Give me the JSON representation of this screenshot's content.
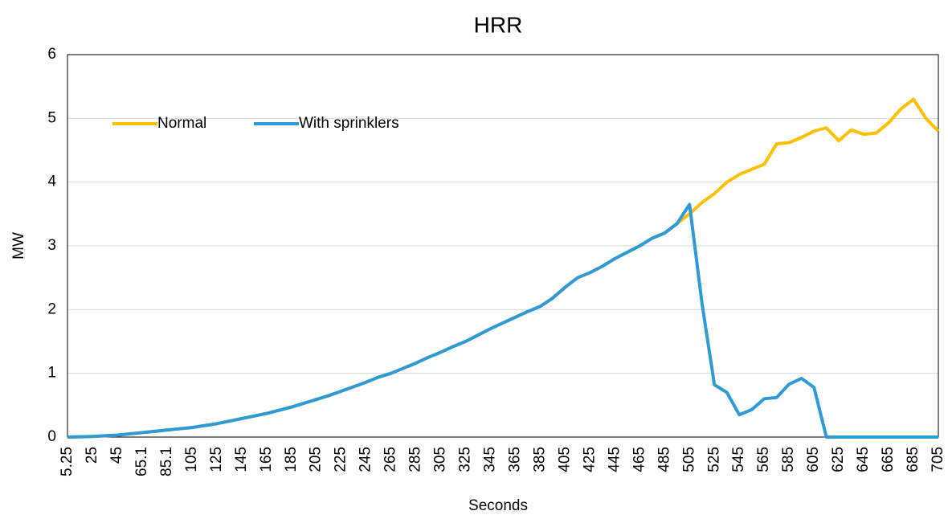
{
  "chart_data": {
    "type": "line",
    "title": "HRR",
    "x_label": "Seconds",
    "y_label": "MW",
    "categories": [
      "5.25",
      null,
      "25",
      null,
      "45",
      null,
      "65.1",
      null,
      "85.1",
      null,
      "105",
      null,
      "125",
      null,
      "145",
      null,
      "165",
      null,
      "185",
      null,
      "205",
      null,
      "225",
      null,
      "245",
      null,
      "265",
      null,
      "285",
      null,
      "305",
      null,
      "325",
      null,
      "345",
      null,
      "365",
      null,
      "385",
      null,
      "405",
      null,
      "425",
      null,
      "445",
      null,
      "465",
      null,
      "485",
      null,
      "505",
      null,
      "525",
      null,
      "545",
      null,
      "565",
      null,
      "585",
      null,
      "605",
      null,
      "625",
      null,
      "645",
      null,
      "665",
      null,
      "685",
      null,
      "705"
    ],
    "series": [
      {
        "name": "Normal",
        "color": "#ffc000",
        "values": [
          0,
          0.005,
          0.01,
          0.02,
          0.03,
          0.05,
          0.07,
          0.09,
          0.11,
          0.13,
          0.15,
          0.18,
          0.21,
          0.25,
          0.29,
          0.33,
          0.37,
          0.42,
          0.47,
          0.53,
          0.59,
          0.65,
          0.72,
          0.79,
          0.86,
          0.94,
          1.0,
          1.08,
          1.16,
          1.25,
          1.33,
          1.42,
          1.5,
          1.6,
          1.7,
          1.79,
          1.88,
          1.97,
          2.05,
          2.18,
          2.35,
          2.5,
          2.58,
          2.68,
          2.8,
          2.9,
          3.0,
          3.12,
          3.2,
          3.35,
          3.5,
          3.68,
          3.82,
          4.0,
          4.12,
          4.2,
          4.28,
          4.6,
          4.62,
          4.7,
          4.8,
          4.85,
          4.65,
          4.82,
          4.75,
          4.77,
          4.93,
          5.15,
          5.3,
          5.0,
          4.8
        ]
      },
      {
        "name": "With sprinklers",
        "color": "#2e9bd6",
        "values": [
          0,
          0.005,
          0.01,
          0.02,
          0.03,
          0.05,
          0.07,
          0.09,
          0.11,
          0.13,
          0.15,
          0.18,
          0.21,
          0.25,
          0.29,
          0.33,
          0.37,
          0.42,
          0.47,
          0.53,
          0.59,
          0.65,
          0.72,
          0.79,
          0.86,
          0.94,
          1.0,
          1.08,
          1.16,
          1.25,
          1.33,
          1.42,
          1.5,
          1.6,
          1.7,
          1.79,
          1.88,
          1.97,
          2.05,
          2.18,
          2.35,
          2.5,
          2.58,
          2.68,
          2.8,
          2.9,
          3.0,
          3.12,
          3.2,
          3.35,
          3.65,
          2.1,
          0.82,
          0.7,
          0.35,
          0.43,
          0.6,
          0.62,
          0.83,
          0.92,
          0.78,
          0,
          0,
          0,
          0,
          0,
          0,
          0,
          0,
          0,
          0
        ]
      }
    ],
    "ylim": [
      0,
      6
    ],
    "yticks": [
      0,
      1,
      2,
      3,
      4,
      5,
      6
    ],
    "grid": true,
    "legend": "upper left"
  }
}
